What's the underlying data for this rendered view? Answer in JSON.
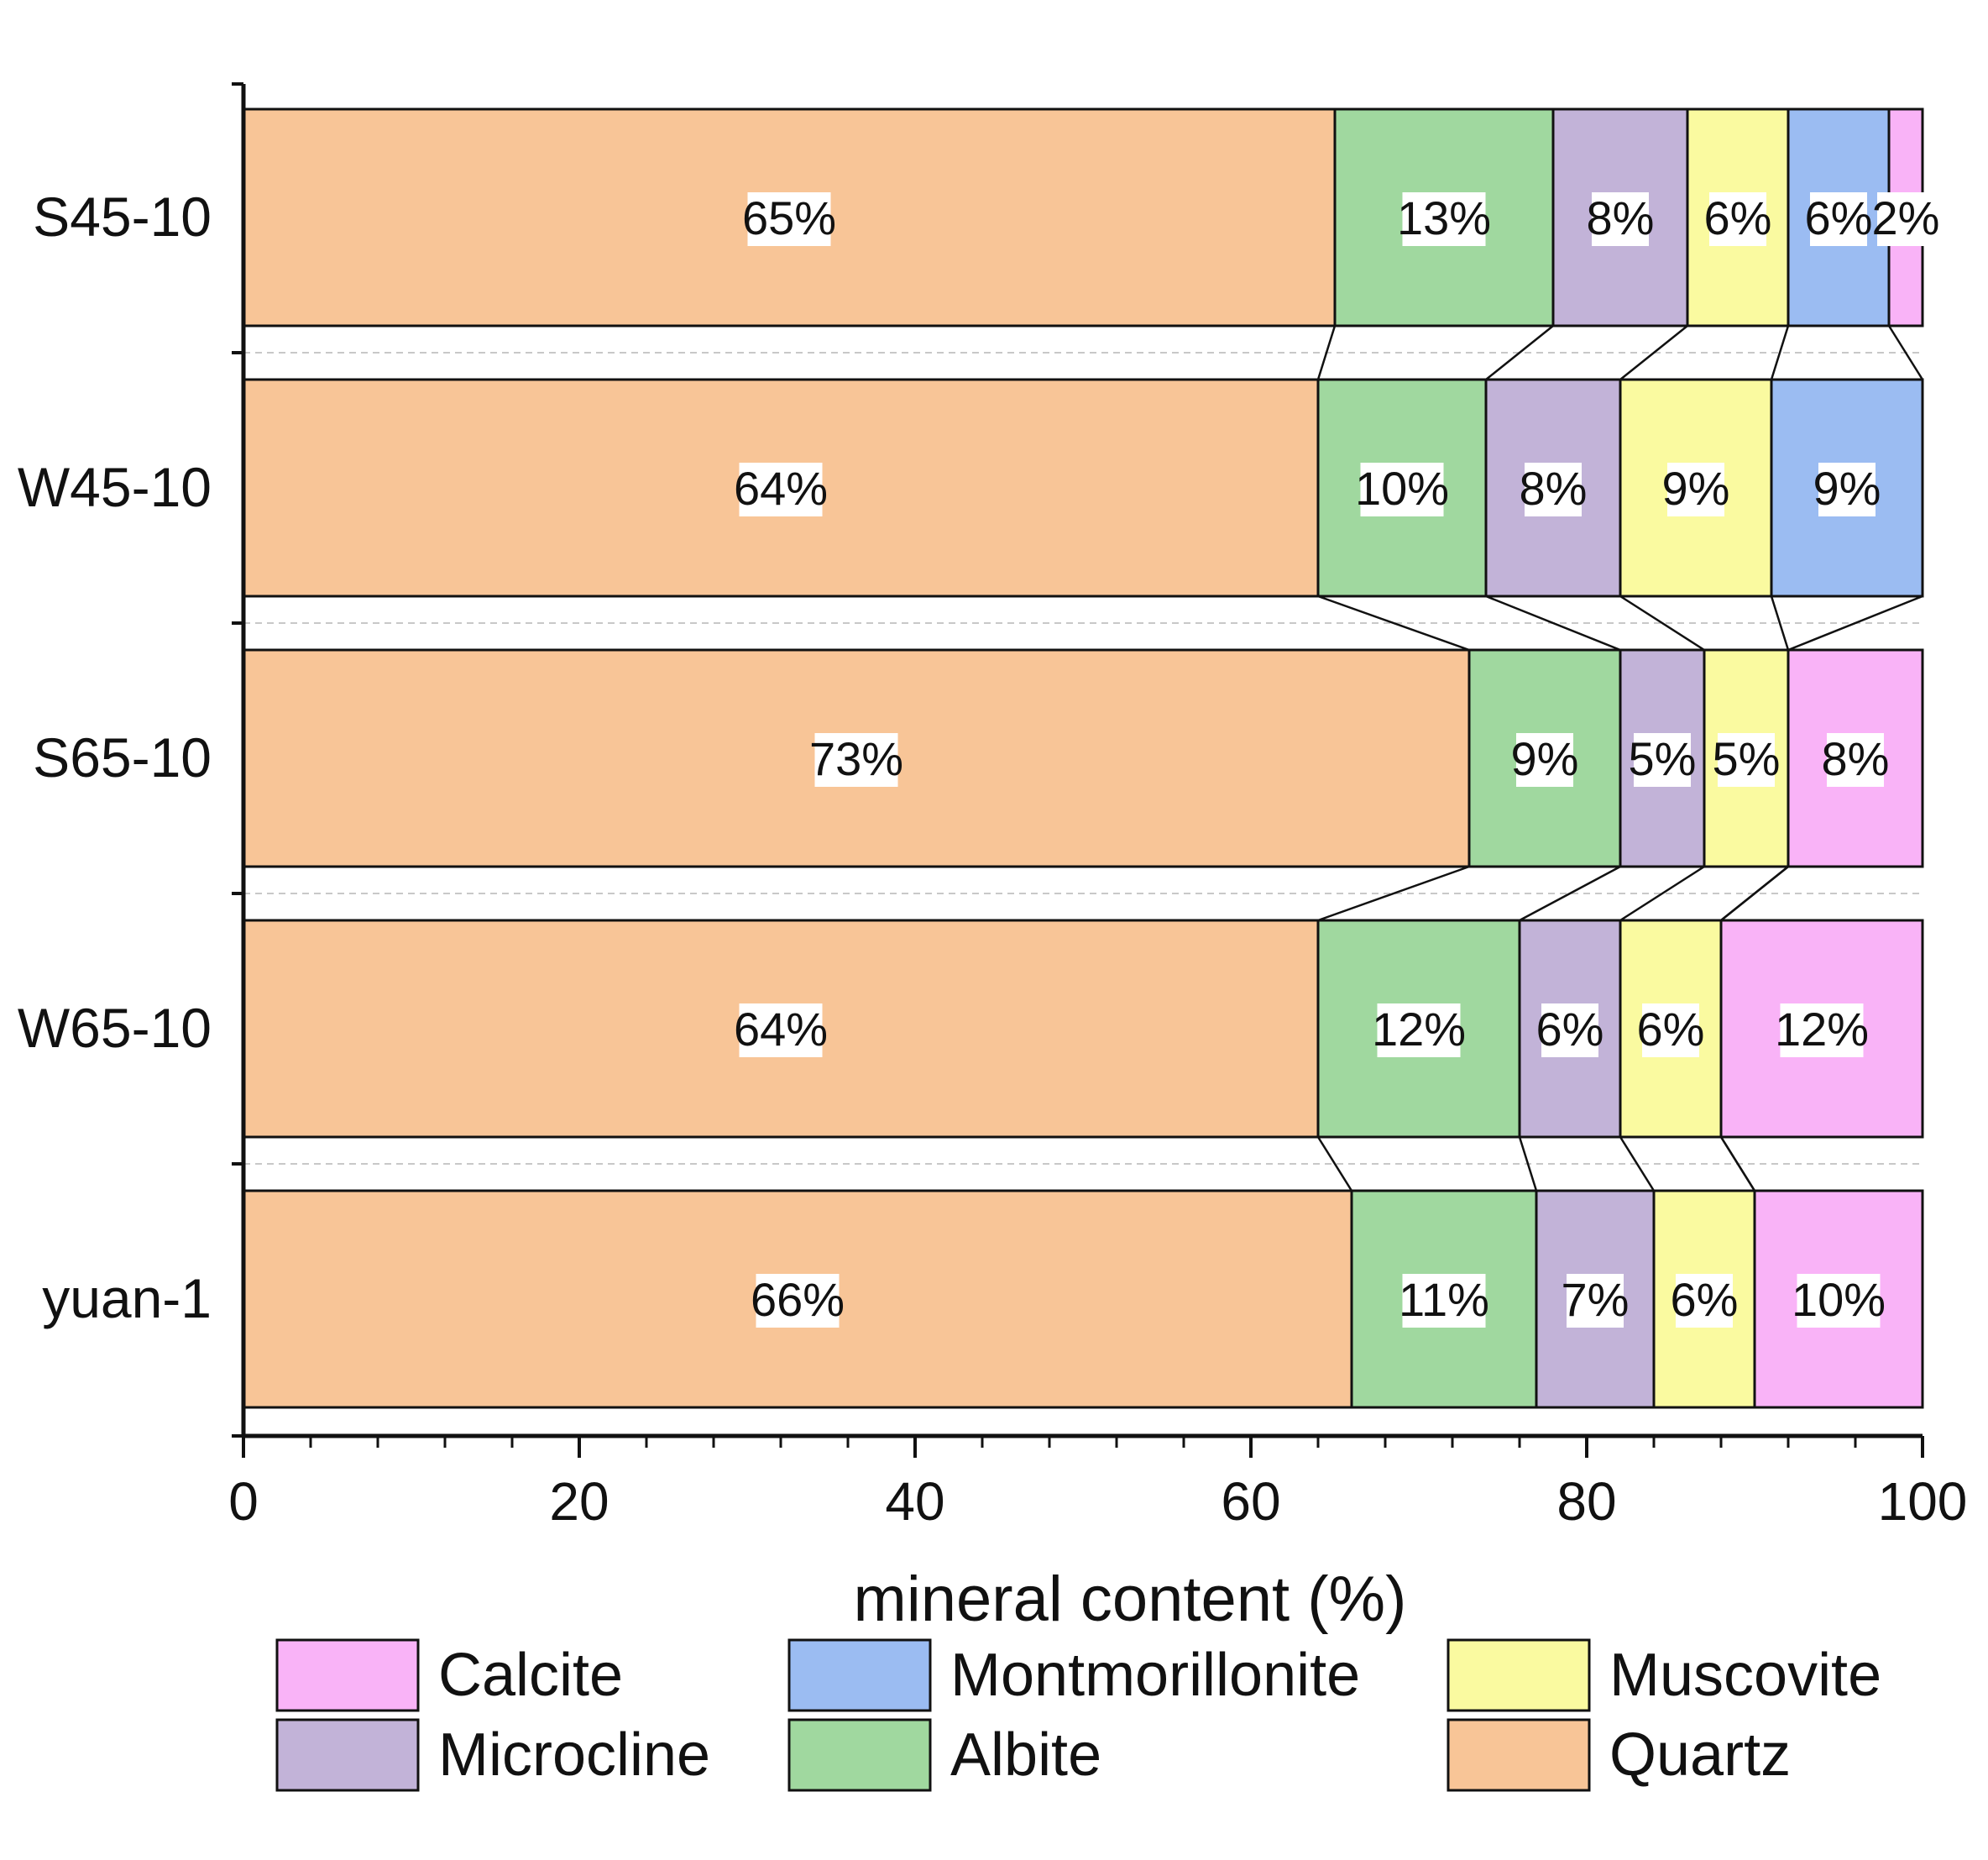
{
  "chart_data": {
    "type": "bar",
    "orientation": "horizontal",
    "stacked": true,
    "title": "",
    "xlabel": "mineral content (%)",
    "ylabel": "",
    "xlim": [
      0,
      100
    ],
    "x_ticks": [
      "0",
      "20",
      "40",
      "60",
      "80",
      "100"
    ],
    "categories": [
      "S45-10",
      "W45-10",
      "S65-10",
      "W65-10",
      "yuan-1"
    ],
    "series": [
      {
        "name": "Quartz",
        "color": "#F8C597",
        "values": [
          65,
          64,
          73,
          64,
          66
        ],
        "labels": [
          "65%",
          "64%",
          "73%",
          "64%",
          "66%"
        ]
      },
      {
        "name": "Albite",
        "color": "#A0D89F",
        "values": [
          13,
          10,
          9,
          12,
          11
        ],
        "labels": [
          "13%",
          "10%",
          "9%",
          "12%",
          "11%"
        ]
      },
      {
        "name": "Microcline",
        "color": "#C2B3D8",
        "values": [
          8,
          8,
          5,
          6,
          7
        ],
        "labels": [
          "8%",
          "8%",
          "5%",
          "6%",
          "7%"
        ]
      },
      {
        "name": "Muscovite",
        "color": "#FAFAA0",
        "values": [
          6,
          9,
          5,
          6,
          6
        ],
        "labels": [
          "6%",
          "9%",
          "5%",
          "6%",
          "6%"
        ]
      },
      {
        "name": "Montmorillonite",
        "color": "#9BBCF2",
        "values": [
          6,
          9,
          0,
          0,
          0
        ],
        "labels": [
          "6%",
          "9%",
          "",
          "",
          ""
        ]
      },
      {
        "name": "Calcite",
        "color": "#F9B3F7",
        "values": [
          2,
          0,
          8,
          12,
          10
        ],
        "labels": [
          "2%",
          "",
          "8%",
          "12%",
          "10%"
        ]
      }
    ],
    "legend": {
      "position": "bottom",
      "entries": [
        {
          "name": "Calcite",
          "color": "#F9B3F7"
        },
        {
          "name": "Montmorillonite",
          "color": "#9BBCF2"
        },
        {
          "name": "Muscovite",
          "color": "#FAFAA0"
        },
        {
          "name": "Microcline",
          "color": "#C2B3D8"
        },
        {
          "name": "Albite",
          "color": "#A0D89F"
        },
        {
          "name": "Quartz",
          "color": "#F8C597"
        }
      ]
    }
  }
}
